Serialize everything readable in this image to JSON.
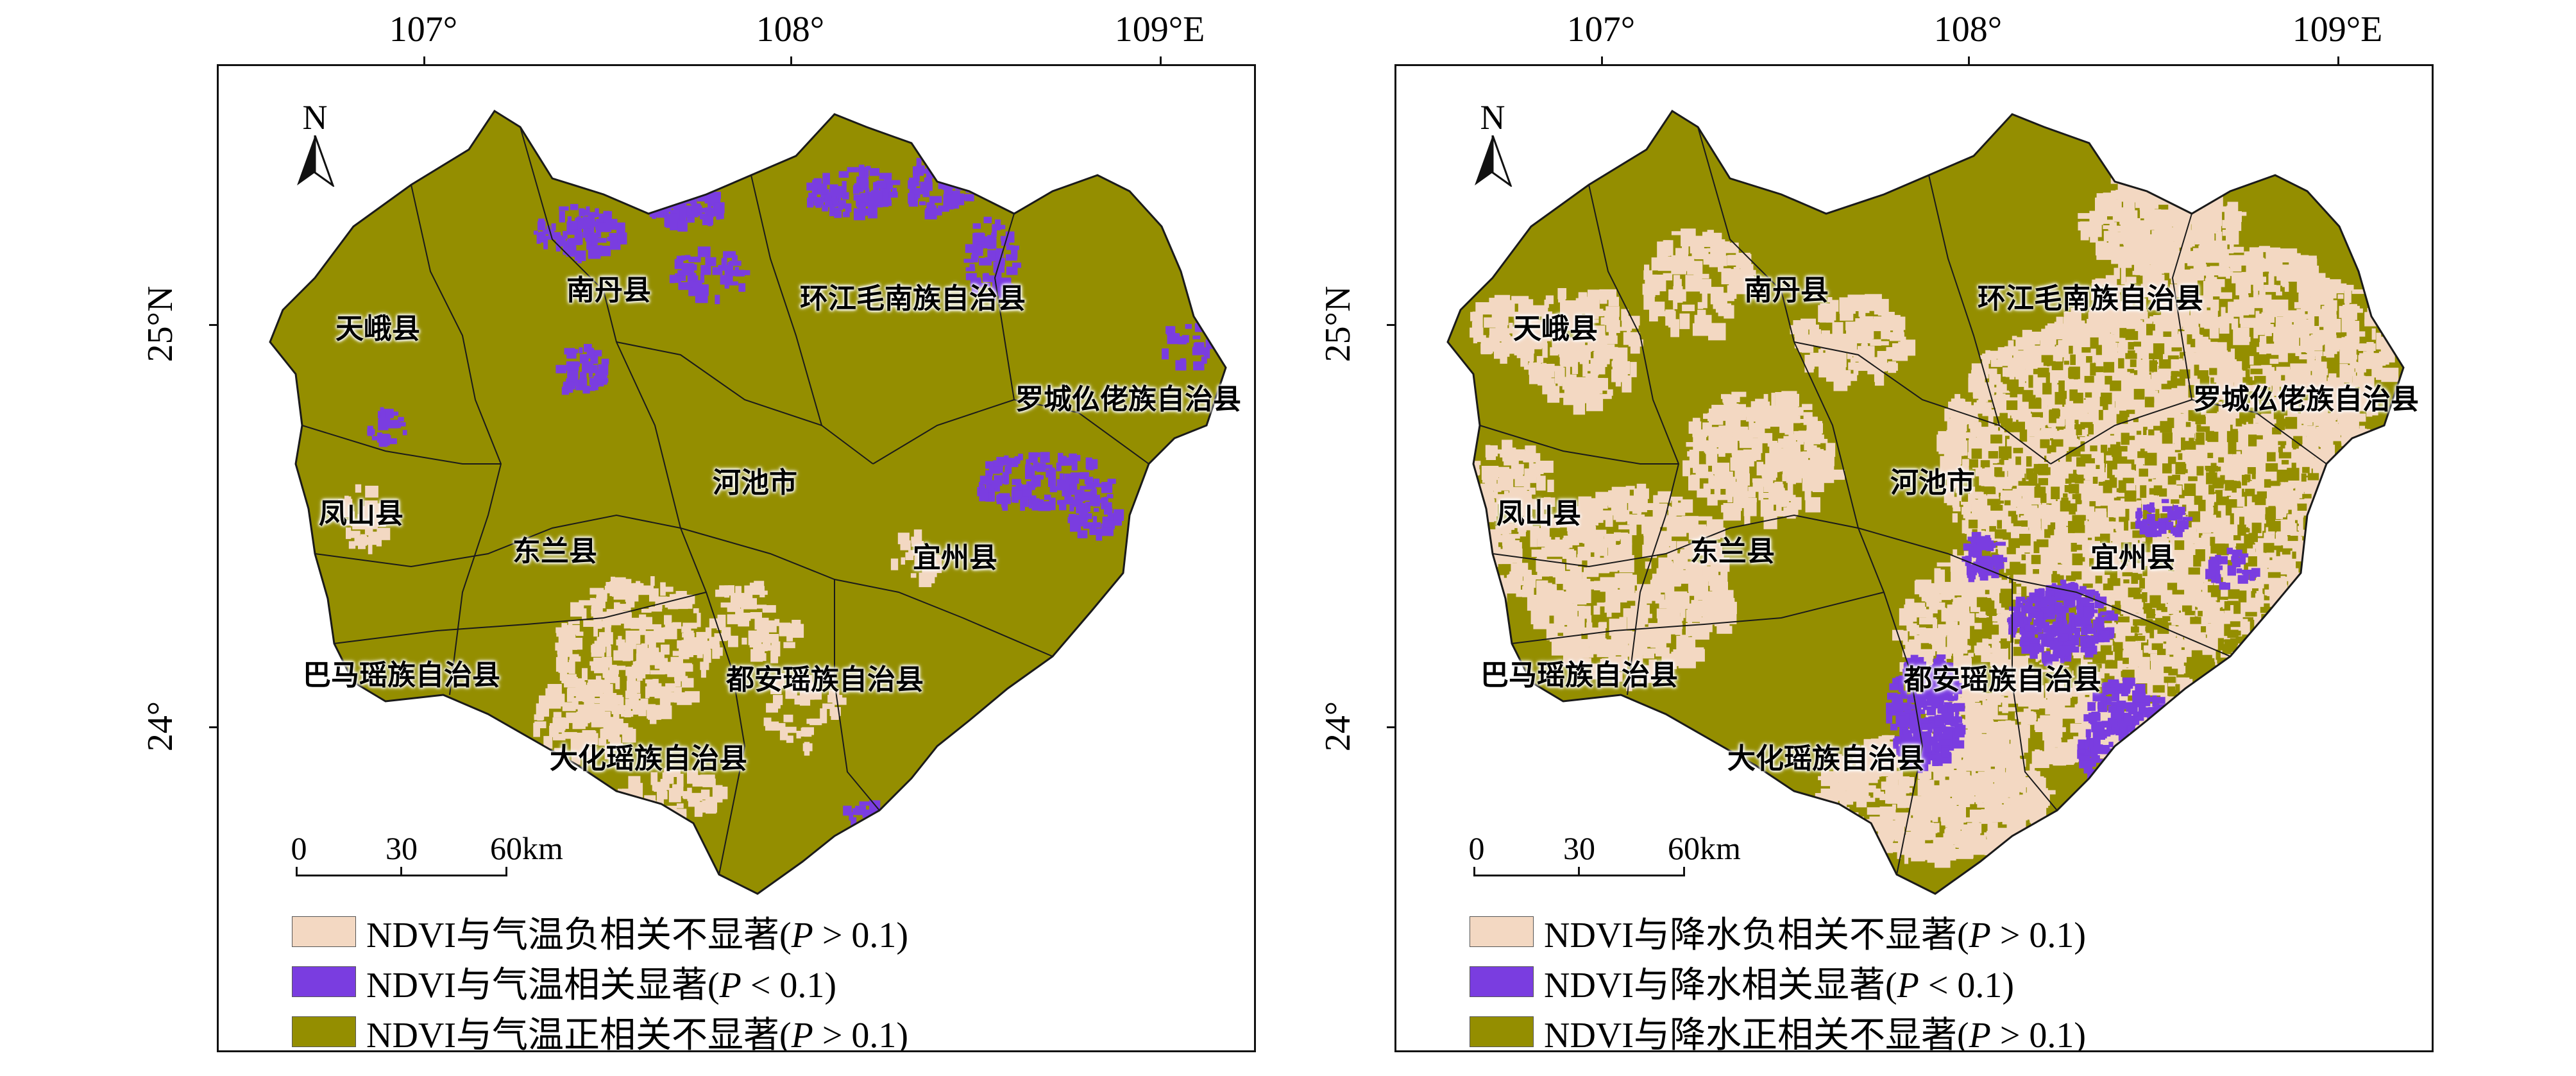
{
  "colors": {
    "positive_ns": "#948e00",
    "negative_ns": "#f3d8c2",
    "significant": "#7a3de0",
    "boundary": "#1a1a1a"
  },
  "axes": {
    "longitudes": [
      "107°",
      "108°",
      "109°E"
    ],
    "latitudes": [
      "25°N",
      "24°"
    ]
  },
  "north_arrow": {
    "letter": "N"
  },
  "scale_bar": {
    "labels": [
      "0",
      "30",
      "60km"
    ]
  },
  "counties": [
    "天峨县",
    "南丹县",
    "环江毛南族自治县",
    "罗城仫佬族自治县",
    "凤山县",
    "河池市",
    "东兰县",
    "宜州县",
    "巴马瑶族自治县",
    "都安瑶族自治县",
    "大化瑶族自治县"
  ],
  "panels": [
    {
      "id": "temperature",
      "legend": [
        {
          "pre": "NDVI与气温负相关不显著(",
          "var": "P",
          "post": " > 0.1)",
          "color": "#f3d8c2"
        },
        {
          "pre": "NDVI与气温相关显著(",
          "var": "P",
          "post": " < 0.1)",
          "color": "#7a3de0"
        },
        {
          "pre": "NDVI与气温正相关不显著(",
          "var": "P",
          "post": " > 0.1)",
          "color": "#948e00"
        }
      ]
    },
    {
      "id": "precipitation",
      "legend": [
        {
          "pre": "NDVI与降水负相关不显著(",
          "var": "P",
          "post": " > 0.1)",
          "color": "#f3d8c2"
        },
        {
          "pre": "NDVI与降水相关显著(",
          "var": "P",
          "post": " < 0.1)",
          "color": "#7a3de0"
        },
        {
          "pre": "NDVI与降水正相关不显著(",
          "var": "P",
          "post": " > 0.1)",
          "color": "#948e00"
        }
      ]
    }
  ]
}
